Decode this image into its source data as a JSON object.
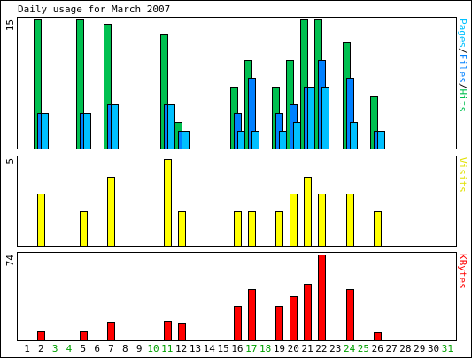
{
  "chart_data": {
    "type": "bar",
    "title": "Daily usage for March 2007",
    "days": [
      "1",
      "2",
      "3",
      "4",
      "5",
      "6",
      "7",
      "8",
      "9",
      "10",
      "11",
      "12",
      "13",
      "14",
      "15",
      "16",
      "17",
      "18",
      "19",
      "20",
      "21",
      "22",
      "23",
      "24",
      "25",
      "26",
      "27",
      "28",
      "29",
      "30",
      "31"
    ],
    "weekend_days": [
      3,
      4,
      10,
      11,
      17,
      18,
      24,
      25,
      31
    ],
    "panels": [
      {
        "id": "hits",
        "ymax_label": "15",
        "ymax": 15,
        "ylabel_parts": [
          {
            "text": "Pages",
            "color": "#00c0ff"
          },
          {
            "text": "/",
            "color": "#000000"
          },
          {
            "text": "Files",
            "color": "#0080ff"
          },
          {
            "text": "/",
            "color": "#000000"
          },
          {
            "text": "Hits",
            "color": "#00c050"
          }
        ],
        "series": [
          {
            "name": "Hits",
            "color": "#00c050",
            "values": [
              0,
              15,
              0,
              0,
              15,
              0,
              14.5,
              0,
              0,
              0,
              13.3,
              3.1,
              0,
              0,
              0,
              7.2,
              10.3,
              0,
              7.2,
              10.3,
              15,
              15,
              0,
              12.3,
              0,
              6.1,
              0,
              0,
              0,
              0,
              0
            ]
          },
          {
            "name": "Files",
            "color": "#0080ff",
            "values": [
              0,
              4.1,
              0,
              0,
              4.1,
              0,
              5.1,
              0,
              0,
              0,
              5.1,
              2.1,
              0,
              0,
              0,
              4.1,
              8.2,
              0,
              4.1,
              5.1,
              7.2,
              10.3,
              0,
              8.2,
              0,
              2.1,
              0,
              0,
              0,
              0,
              0
            ]
          },
          {
            "name": "Pages",
            "color": "#00c0ff",
            "values": [
              0,
              4.1,
              0,
              0,
              4.1,
              0,
              5.1,
              0,
              0,
              0,
              5.1,
              2.1,
              0,
              0,
              0,
              2.1,
              2.1,
              0,
              2.1,
              3.1,
              7.2,
              7.2,
              0,
              3.1,
              0,
              2.1,
              0,
              0,
              0,
              0,
              0
            ]
          }
        ]
      },
      {
        "id": "visits",
        "ymax_label": "5",
        "ymax": 5,
        "ylabel_parts": [
          {
            "text": "Visits",
            "color": "#e0e000"
          }
        ],
        "series": [
          {
            "name": "Visits",
            "color": "#ffff00",
            "values": [
              0,
              3,
              0,
              0,
              2,
              0,
              4,
              0,
              0,
              0,
              5,
              2,
              0,
              0,
              0,
              2,
              2,
              0,
              2,
              3,
              4,
              3,
              0,
              3,
              0,
              2,
              0,
              0,
              0,
              0,
              0
            ]
          }
        ]
      },
      {
        "id": "kbytes",
        "ymax_label": "74",
        "ymax": 74,
        "ylabel_parts": [
          {
            "text": "KBytes",
            "color": "#ff0000"
          }
        ],
        "series": [
          {
            "name": "KBytes",
            "color": "#ff0000",
            "values": [
              0,
              8,
              0,
              0,
              8,
              0,
              16,
              0,
              0,
              0,
              17,
              15,
              0,
              0,
              0,
              30,
              44,
              0,
              30,
              38,
              49,
              74,
              0,
              44,
              0,
              7,
              0,
              0,
              0,
              0,
              0
            ]
          }
        ]
      }
    ]
  },
  "colors": {
    "weekday_label": "#000000",
    "weekend_label": "#00a000"
  }
}
